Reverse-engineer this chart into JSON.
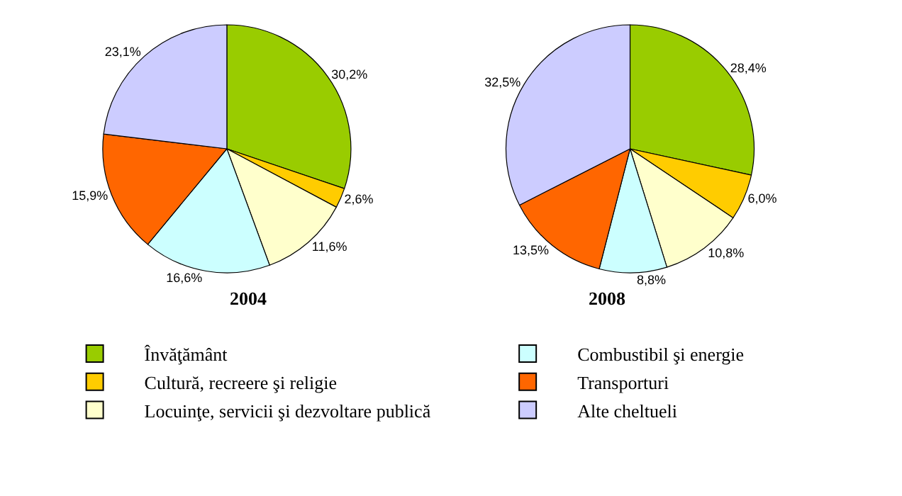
{
  "chart_data": {
    "type": "pie",
    "categories": [
      "Învăţământ",
      "Cultură, recreere şi religie",
      "Locuinţe, servicii şi dezvoltare publică",
      "Combustibil şi energie",
      "Transporturi",
      "Alte cheltueli"
    ],
    "colors": [
      "#99cc00",
      "#ffcc00",
      "#ffffcc",
      "#ccffff",
      "#ff6600",
      "#ccccff"
    ],
    "legend": "bottom",
    "series": [
      {
        "name": "2004",
        "values": [
          30.2,
          2.6,
          11.6,
          16.6,
          15.9,
          23.1
        ],
        "value_labels": [
          "30,2%",
          "2,6%",
          "11,6%",
          "16,6%",
          "15,9%",
          "23,1%"
        ]
      },
      {
        "name": "2008",
        "values": [
          28.4,
          6.0,
          10.8,
          8.8,
          13.5,
          32.5
        ],
        "value_labels": [
          "28,4%",
          "6,0%",
          "10,8%",
          "8,8%",
          "13,5%",
          "32,5%"
        ]
      }
    ]
  }
}
